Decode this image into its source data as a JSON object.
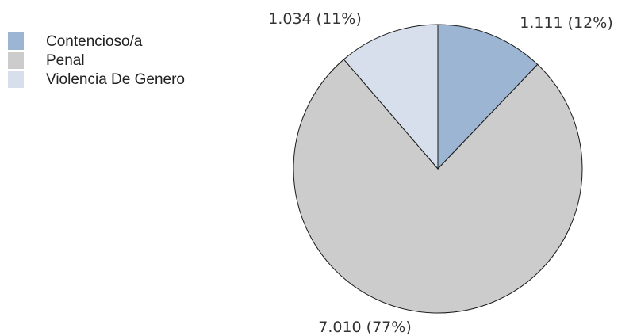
{
  "chart_data": {
    "type": "pie",
    "title": "",
    "categories": [
      "Contencioso/a",
      "Penal",
      "Violencia De Genero"
    ],
    "values": [
      1111,
      7010,
      1034
    ],
    "value_labels": [
      "1.111",
      "7.010",
      "1.034"
    ],
    "percent_labels": [
      "(12%)",
      "(77%)",
      "(11%)"
    ],
    "colors": [
      "#9cb5d2",
      "#cccccc",
      "#d6dfeb"
    ],
    "start_angle_deg": 0,
    "direction": "clockwise",
    "legend_position": "top-left"
  }
}
